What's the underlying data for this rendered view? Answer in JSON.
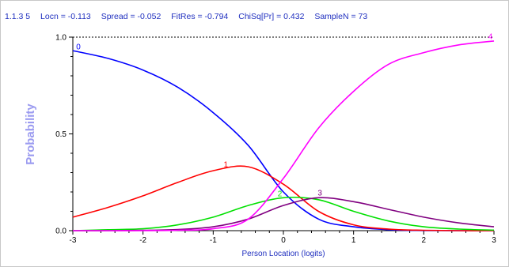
{
  "header": {
    "item_id": "1.1.3 5",
    "locn": "Locn = -0.113",
    "spread": "Spread = -0.052",
    "fitres": "FitRes = -0.794",
    "chisq": "ChiSq[Pr] = 0.432",
    "samplen": "SampleN = 73"
  },
  "chart_data": {
    "type": "line",
    "title": "",
    "xlabel": "Person Location (logits)",
    "ylabel": "Probability",
    "xlim": [
      -3,
      3
    ],
    "ylim": [
      0,
      1
    ],
    "x_ticks": [
      "-3",
      "-2",
      "-1",
      "0",
      "1",
      "2",
      "3"
    ],
    "y_ticks": [
      "0.0",
      "0.5",
      "1.0"
    ],
    "reference_line": {
      "y": 1.0,
      "style": "dashed"
    },
    "x": [
      -3,
      -2.5,
      -2,
      -1.5,
      -1,
      -0.5,
      0,
      0.5,
      1,
      1.5,
      2,
      2.5,
      3
    ],
    "series": [
      {
        "name": "0",
        "color": "#0000ff",
        "values": [
          0.93,
          0.89,
          0.83,
          0.74,
          0.61,
          0.44,
          0.2,
          0.06,
          0.02,
          0.005,
          0.001,
          0.0,
          0.0
        ]
      },
      {
        "name": "1",
        "color": "#ff0000",
        "values": [
          0.07,
          0.12,
          0.18,
          0.25,
          0.31,
          0.33,
          0.24,
          0.1,
          0.03,
          0.008,
          0.002,
          0.0,
          0.0
        ]
      },
      {
        "name": "2",
        "color": "#00e000",
        "values": [
          0.0,
          0.005,
          0.01,
          0.03,
          0.07,
          0.13,
          0.17,
          0.16,
          0.1,
          0.05,
          0.02,
          0.008,
          0.003
        ]
      },
      {
        "name": "3",
        "color": "#800080",
        "values": [
          0.0,
          0.0,
          0.002,
          0.006,
          0.02,
          0.06,
          0.13,
          0.17,
          0.15,
          0.11,
          0.07,
          0.04,
          0.02
        ]
      },
      {
        "name": "4",
        "color": "#ff00ff",
        "values": [
          0.0,
          0.0,
          0.0,
          0.002,
          0.01,
          0.06,
          0.27,
          0.53,
          0.72,
          0.86,
          0.92,
          0.96,
          0.98
        ]
      }
    ],
    "curve_label_x": [
      -2.92,
      -0.82,
      -0.05,
      0.52,
      2.95
    ]
  }
}
